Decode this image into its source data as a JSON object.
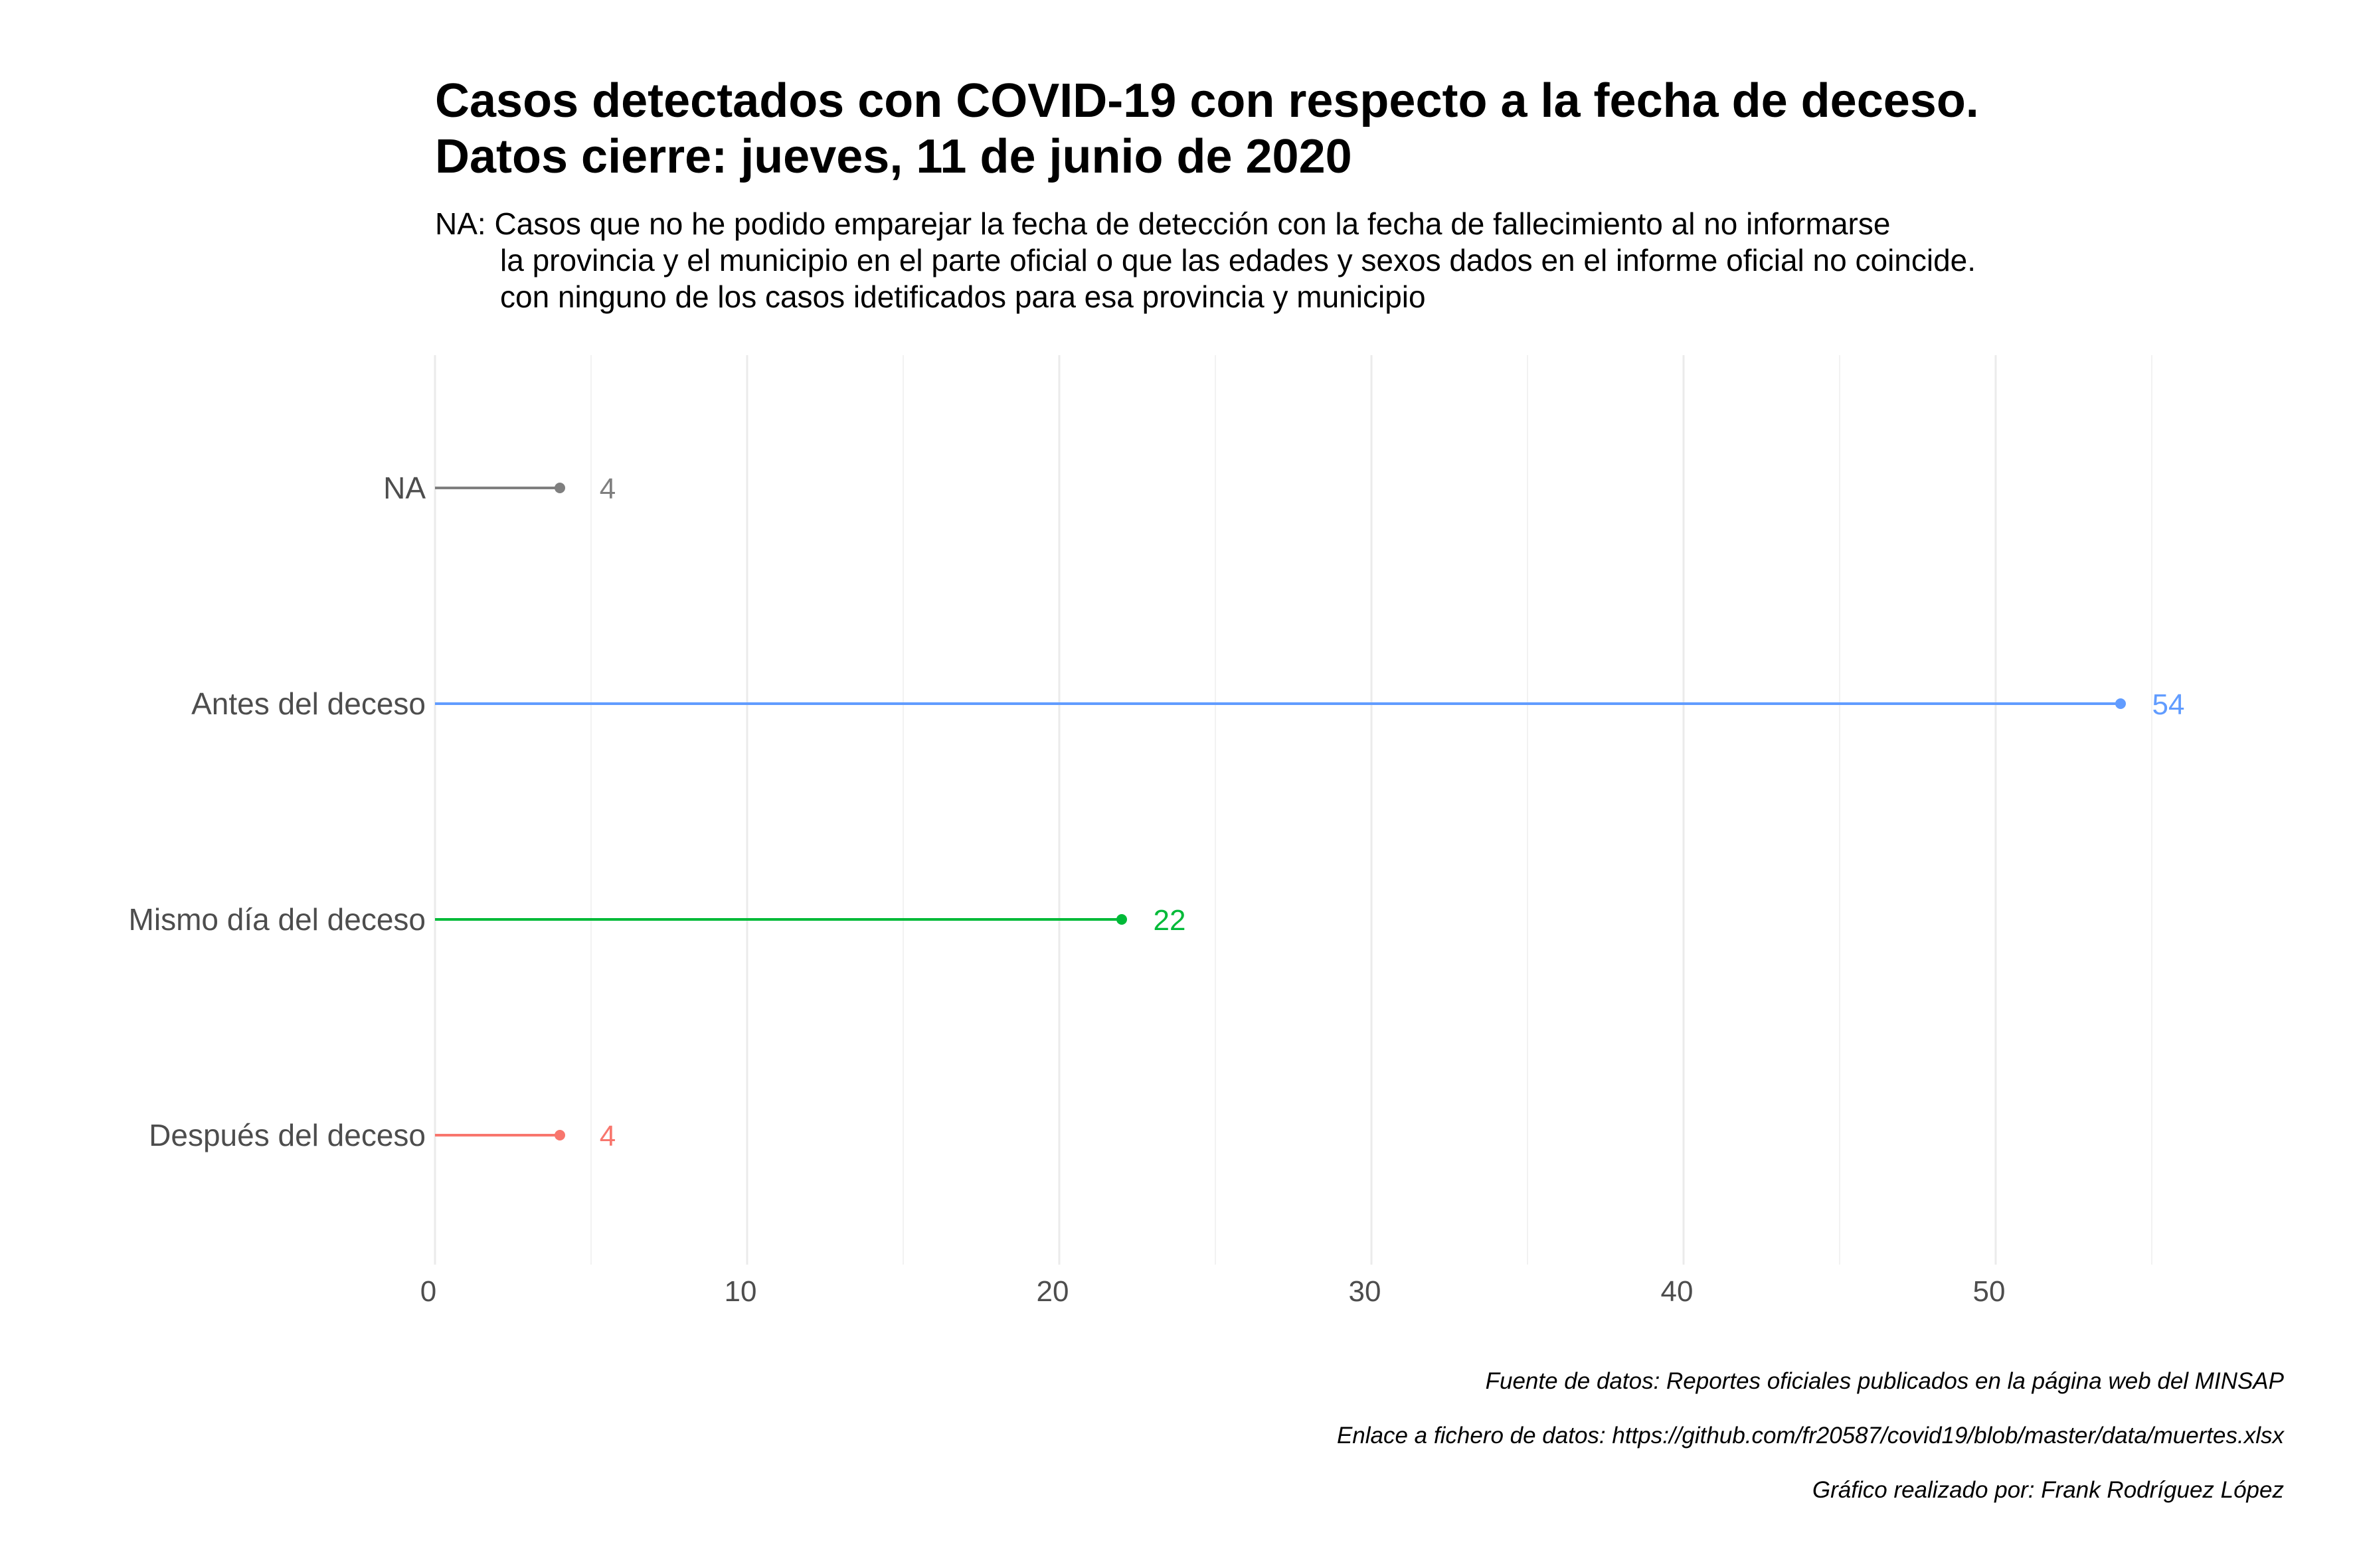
{
  "title_lines": [
    "Casos detectados con COVID-19 con respecto a la fecha de deceso.",
    "Datos cierre: jueves, 11 de junio de 2020"
  ],
  "subtitle_lines": [
    "NA: Casos que no he podido emparejar la fecha de detección con la fecha de fallecimiento al no informarse",
    "la provincia y el municipio en el parte oficial o que las edades y sexos dados en el informe oficial no coincide.",
    "con ninguno de los casos idetificados para esa provincia y municipio"
  ],
  "caption_lines": [
    "Fuente de datos: Reportes oficiales publicados en la página web del MINSAP",
    "Enlace a fichero de datos: https://github.com/fr20587/covid19/blob/master/data/muertes.xlsx",
    "Gráfico realizado por: Frank Rodríguez López"
  ],
  "chart_data": {
    "type": "lollipop",
    "orientation": "horizontal",
    "categories": [
      "NA",
      "Antes del deceso",
      "Mismo día del deceso",
      "Después del deceso"
    ],
    "values": [
      4,
      54,
      22,
      4
    ],
    "value_labels": [
      "4",
      "54",
      "22",
      "4"
    ],
    "colors": [
      "#7f7f7f",
      "#619cff",
      "#00ba38",
      "#f8766d"
    ],
    "xlim": [
      0,
      55
    ],
    "x_ticks": [
      0,
      10,
      20,
      30,
      40,
      50
    ],
    "grid": true,
    "legend": "none"
  }
}
